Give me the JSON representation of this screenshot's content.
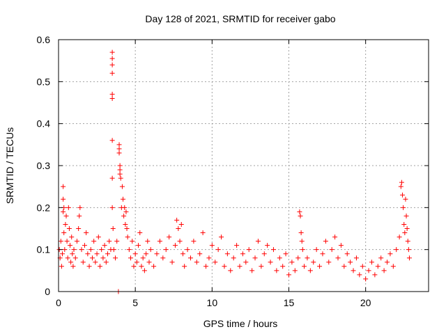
{
  "chart_data": {
    "type": "scatter",
    "title": "Day 128 of 2021, SRMTID for receiver gabo",
    "xlabel": "GPS time / hours",
    "ylabel": "SRMTID / TECUs",
    "xlim": [
      0,
      24.1
    ],
    "ylim": [
      0,
      0.6
    ],
    "xticks": [
      0,
      5,
      10,
      15,
      20
    ],
    "xtick_labels": [
      "0",
      "5",
      "10",
      "15",
      "20"
    ],
    "yticks": [
      0,
      0.1,
      0.2,
      0.3,
      0.4,
      0.5,
      0.6
    ],
    "ytick_labels": [
      "0",
      "0.1",
      "0.2",
      "0.3",
      "0.4",
      "0.5",
      "0.6"
    ],
    "grid": true,
    "marker": "+",
    "color": "#ff0000",
    "series": [
      {
        "name": "SRMTID",
        "points": [
          [
            0.05,
            0.1
          ],
          [
            0.1,
            0.08
          ],
          [
            0.15,
            0.12
          ],
          [
            0.2,
            0.06
          ],
          [
            0.25,
            0.09
          ],
          [
            0.3,
            0.19
          ],
          [
            0.3,
            0.22
          ],
          [
            0.3,
            0.25
          ],
          [
            0.35,
            0.2
          ],
          [
            0.35,
            0.14
          ],
          [
            0.4,
            0.1
          ],
          [
            0.45,
            0.16
          ],
          [
            0.5,
            0.18
          ],
          [
            0.55,
            0.12
          ],
          [
            0.6,
            0.08
          ],
          [
            0.65,
            0.2
          ],
          [
            0.7,
            0.15
          ],
          [
            0.75,
            0.11
          ],
          [
            0.8,
            0.07
          ],
          [
            0.85,
            0.13
          ],
          [
            0.9,
            0.09
          ],
          [
            0.95,
            0.06
          ],
          [
            1.0,
            0.1
          ],
          [
            1.1,
            0.08
          ],
          [
            1.2,
            0.12
          ],
          [
            1.3,
            0.15
          ],
          [
            1.35,
            0.18
          ],
          [
            1.4,
            0.2
          ],
          [
            1.5,
            0.1
          ],
          [
            1.6,
            0.07
          ],
          [
            1.7,
            0.11
          ],
          [
            1.8,
            0.14
          ],
          [
            1.9,
            0.09
          ],
          [
            2.0,
            0.06
          ],
          [
            2.1,
            0.1
          ],
          [
            2.2,
            0.08
          ],
          [
            2.3,
            0.12
          ],
          [
            2.4,
            0.07
          ],
          [
            2.5,
            0.09
          ],
          [
            2.6,
            0.13
          ],
          [
            2.7,
            0.06
          ],
          [
            2.8,
            0.1
          ],
          [
            2.9,
            0.08
          ],
          [
            3.0,
            0.11
          ],
          [
            3.1,
            0.07
          ],
          [
            3.2,
            0.09
          ],
          [
            3.3,
            0.12
          ],
          [
            3.4,
            0.1
          ],
          [
            3.5,
            0.2
          ],
          [
            3.5,
            0.27
          ],
          [
            3.5,
            0.36
          ],
          [
            3.5,
            0.46
          ],
          [
            3.5,
            0.47
          ],
          [
            3.5,
            0.52
          ],
          [
            3.5,
            0.54
          ],
          [
            3.5,
            0.555
          ],
          [
            3.5,
            0.57
          ],
          [
            3.55,
            0.15
          ],
          [
            3.6,
            0.1
          ],
          [
            3.7,
            0.08
          ],
          [
            3.8,
            0.12
          ],
          [
            3.9,
            0.0
          ],
          [
            3.95,
            0.35
          ],
          [
            3.95,
            0.34
          ],
          [
            3.95,
            0.33
          ],
          [
            4.0,
            0.3
          ],
          [
            4.0,
            0.29
          ],
          [
            4.0,
            0.28
          ],
          [
            4.05,
            0.27
          ],
          [
            4.1,
            0.2
          ],
          [
            4.15,
            0.25
          ],
          [
            4.2,
            0.22
          ],
          [
            4.25,
            0.18
          ],
          [
            4.3,
            0.2
          ],
          [
            4.35,
            0.16
          ],
          [
            4.4,
            0.19
          ],
          [
            4.45,
            0.15
          ],
          [
            4.5,
            0.13
          ],
          [
            4.6,
            0.1
          ],
          [
            4.7,
            0.08
          ],
          [
            4.8,
            0.12
          ],
          [
            4.9,
            0.06
          ],
          [
            5.0,
            0.09
          ],
          [
            5.1,
            0.07
          ],
          [
            5.2,
            0.11
          ],
          [
            5.3,
            0.14
          ],
          [
            5.4,
            0.06
          ],
          [
            5.5,
            0.08
          ],
          [
            5.6,
            0.05
          ],
          [
            5.7,
            0.09
          ],
          [
            5.8,
            0.12
          ],
          [
            5.9,
            0.07
          ],
          [
            6.0,
            0.1
          ],
          [
            6.2,
            0.06
          ],
          [
            6.4,
            0.09
          ],
          [
            6.6,
            0.12
          ],
          [
            6.8,
            0.08
          ],
          [
            7.0,
            0.1
          ],
          [
            7.2,
            0.13
          ],
          [
            7.4,
            0.07
          ],
          [
            7.6,
            0.11
          ],
          [
            7.7,
            0.17
          ],
          [
            7.8,
            0.15
          ],
          [
            7.9,
            0.12
          ],
          [
            8.0,
            0.16
          ],
          [
            8.1,
            0.09
          ],
          [
            8.2,
            0.06
          ],
          [
            8.4,
            0.1
          ],
          [
            8.6,
            0.08
          ],
          [
            8.8,
            0.12
          ],
          [
            9.0,
            0.07
          ],
          [
            9.2,
            0.09
          ],
          [
            9.4,
            0.14
          ],
          [
            9.6,
            0.06
          ],
          [
            9.8,
            0.08
          ],
          [
            10.0,
            0.11
          ],
          [
            10.2,
            0.07
          ],
          [
            10.4,
            0.1
          ],
          [
            10.6,
            0.13
          ],
          [
            10.8,
            0.06
          ],
          [
            11.0,
            0.09
          ],
          [
            11.2,
            0.05
          ],
          [
            11.4,
            0.08
          ],
          [
            11.6,
            0.11
          ],
          [
            11.8,
            0.06
          ],
          [
            12.0,
            0.09
          ],
          [
            12.2,
            0.07
          ],
          [
            12.4,
            0.1
          ],
          [
            12.6,
            0.05
          ],
          [
            12.8,
            0.08
          ],
          [
            13.0,
            0.12
          ],
          [
            13.2,
            0.06
          ],
          [
            13.4,
            0.09
          ],
          [
            13.6,
            0.11
          ],
          [
            13.8,
            0.07
          ],
          [
            14.0,
            0.1
          ],
          [
            14.2,
            0.05
          ],
          [
            14.4,
            0.08
          ],
          [
            14.6,
            0.06
          ],
          [
            14.8,
            0.09
          ],
          [
            15.0,
            0.04
          ],
          [
            15.2,
            0.07
          ],
          [
            15.4,
            0.05
          ],
          [
            15.6,
            0.08
          ],
          [
            15.7,
            0.19
          ],
          [
            15.75,
            0.18
          ],
          [
            15.8,
            0.14
          ],
          [
            15.85,
            0.12
          ],
          [
            15.9,
            0.1
          ],
          [
            16.0,
            0.06
          ],
          [
            16.2,
            0.08
          ],
          [
            16.4,
            0.05
          ],
          [
            16.6,
            0.07
          ],
          [
            16.8,
            0.1
          ],
          [
            17.0,
            0.06
          ],
          [
            17.2,
            0.09
          ],
          [
            17.4,
            0.12
          ],
          [
            17.6,
            0.07
          ],
          [
            17.8,
            0.1
          ],
          [
            18.0,
            0.13
          ],
          [
            18.2,
            0.08
          ],
          [
            18.4,
            0.11
          ],
          [
            18.6,
            0.06
          ],
          [
            18.8,
            0.09
          ],
          [
            19.0,
            0.07
          ],
          [
            19.2,
            0.05
          ],
          [
            19.4,
            0.08
          ],
          [
            19.6,
            0.04
          ],
          [
            19.8,
            0.06
          ],
          [
            20.0,
            0.03
          ],
          [
            20.2,
            0.05
          ],
          [
            20.4,
            0.07
          ],
          [
            20.6,
            0.04
          ],
          [
            20.8,
            0.06
          ],
          [
            21.0,
            0.08
          ],
          [
            21.2,
            0.05
          ],
          [
            21.4,
            0.07
          ],
          [
            21.6,
            0.09
          ],
          [
            21.8,
            0.06
          ],
          [
            22.0,
            0.1
          ],
          [
            22.2,
            0.13
          ],
          [
            22.3,
            0.25
          ],
          [
            22.35,
            0.26
          ],
          [
            22.4,
            0.23
          ],
          [
            22.45,
            0.2
          ],
          [
            22.5,
            0.16
          ],
          [
            22.55,
            0.14
          ],
          [
            22.6,
            0.22
          ],
          [
            22.65,
            0.18
          ],
          [
            22.7,
            0.15
          ],
          [
            22.75,
            0.12
          ],
          [
            22.8,
            0.1
          ],
          [
            22.85,
            0.08
          ]
        ]
      }
    ]
  }
}
